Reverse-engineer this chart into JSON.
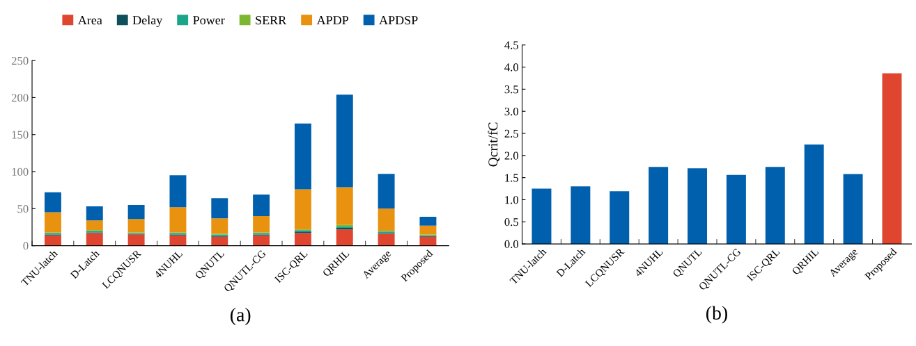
{
  "chart_data": [
    {
      "type": "bar",
      "stacked": true,
      "xlabel": "(a)",
      "legend": "top",
      "categories": [
        "TNU-latch",
        "D-Latch",
        "LCQNUSR",
        "4NUHL",
        "QNUTL",
        "QNUTL-CG",
        "ISC-QRL",
        "QRHIL",
        "Average",
        "Proposed"
      ],
      "ylim": [
        0,
        250
      ],
      "yticks": [
        0,
        50,
        100,
        150,
        200,
        250
      ],
      "grid": false,
      "series": [
        {
          "name": "Area",
          "color": "#e0452f",
          "values": [
            14,
            17,
            15,
            14,
            12,
            14,
            17,
            22,
            16,
            12
          ]
        },
        {
          "name": "Delay",
          "color": "#0d4f5a",
          "values": [
            1,
            1,
            1,
            1,
            1,
            1,
            2,
            2,
            1,
            1
          ]
        },
        {
          "name": "Power",
          "color": "#1aa58a",
          "values": [
            2,
            2,
            1,
            2,
            2,
            2,
            2,
            2,
            2,
            1
          ]
        },
        {
          "name": "SERR",
          "color": "#7cb82f",
          "values": [
            1,
            1,
            1,
            1,
            1,
            1,
            1,
            2,
            1,
            1
          ]
        },
        {
          "name": "APDP",
          "color": "#e8920f",
          "values": [
            27,
            13,
            18,
            34,
            21,
            22,
            54,
            51,
            30,
            12
          ]
        },
        {
          "name": "APDSP",
          "color": "#0060ad",
          "values": [
            27,
            19,
            19,
            43,
            27,
            29,
            89,
            125,
            47,
            12
          ]
        }
      ]
    },
    {
      "type": "bar",
      "xlabel": "(b)",
      "ylabel": "Qcrit/fC",
      "categories": [
        "TNU-latch",
        "D-Latch",
        "LCQNUSR",
        "4NUHL",
        "QNUTL",
        "QNUTL-CG",
        "ISC-QRL",
        "QRHIL",
        "Average",
        "Proposed"
      ],
      "ylim": [
        0,
        4.5
      ],
      "yticks": [
        {
          "value": 0,
          "label": "0.0"
        },
        {
          "value": 0.5,
          "label": "0.5"
        },
        {
          "value": 1,
          "label": "1.0"
        },
        {
          "value": 1.5,
          "label": "1.5"
        },
        {
          "value": 2,
          "label": "2.0"
        },
        {
          "value": 2.5,
          "label": "2.5"
        },
        {
          "value": 3,
          "label": "3.0"
        },
        {
          "value": 3.5,
          "label": "3.5"
        },
        {
          "value": 4,
          "label": "4.0"
        },
        {
          "value": 4.5,
          "label": "4.5"
        }
      ],
      "grid": false,
      "values": [
        1.25,
        1.3,
        1.19,
        1.74,
        1.71,
        1.56,
        1.74,
        2.25,
        1.58,
        3.86
      ],
      "colors": [
        "#0060ad",
        "#0060ad",
        "#0060ad",
        "#0060ad",
        "#0060ad",
        "#0060ad",
        "#0060ad",
        "#0060ad",
        "#0060ad",
        "#e0452f"
      ]
    }
  ]
}
